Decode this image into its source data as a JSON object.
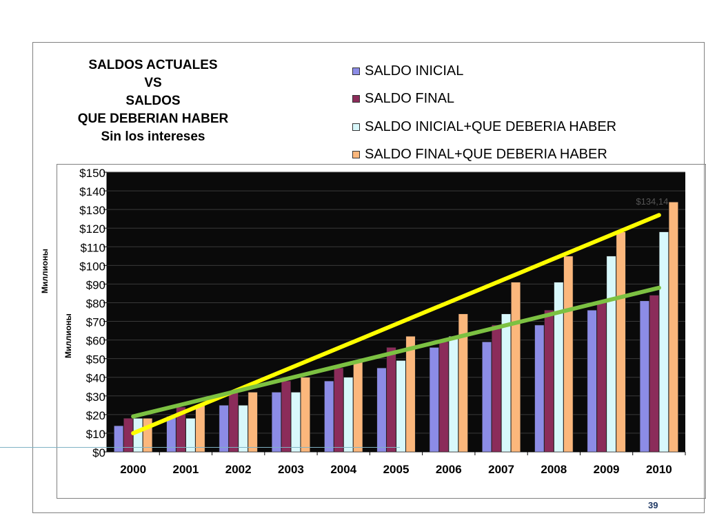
{
  "slide": {
    "page_number": "39"
  },
  "chart_data": {
    "type": "bar",
    "title_lines": [
      "SALDOS ACTUALES",
      "VS",
      "SALDOS",
      "QUE DEBERIAN HABER",
      "Sin los intereses"
    ],
    "unit_label": "Миллионы",
    "categories": [
      "2000",
      "2001",
      "2002",
      "2003",
      "2004",
      "2005",
      "2006",
      "2007",
      "2008",
      "2009",
      "2010"
    ],
    "ylim": [
      0,
      150
    ],
    "y_ticks": [
      "$0",
      "$10",
      "$20",
      "$30",
      "$40",
      "$50",
      "$60",
      "$70",
      "$80",
      "$90",
      "$100",
      "$110",
      "$120",
      "$130",
      "$140",
      "$150"
    ],
    "grid": true,
    "legend_position": "top-right",
    "series": [
      {
        "name": "SALDO INICIAL",
        "color": "#8c8ce6",
        "values": [
          14,
          19,
          25,
          32,
          38,
          45,
          56,
          59,
          68,
          76,
          81
        ]
      },
      {
        "name": "SALDO FINAL",
        "color": "#8b2c5a",
        "values": [
          18,
          24,
          32,
          38,
          45,
          56,
          59,
          68,
          76,
          81,
          84
        ]
      },
      {
        "name": "SALDO INICIAL+QUE DEBERIA HABER",
        "color": "#d8f8fb",
        "values": [
          18,
          18,
          25,
          32,
          40,
          49,
          62,
          74,
          91,
          105,
          118
        ]
      },
      {
        "name": "SALDO FINAL+QUE DEBERIA HABER",
        "color": "#fbb77c",
        "values": [
          18,
          25,
          32,
          40,
          49,
          62,
          74,
          91,
          105,
          118,
          134
        ]
      }
    ],
    "annotations": [
      {
        "text": "$134,14",
        "x": "2010",
        "y": 134.14
      }
    ],
    "trendlines": [
      {
        "color": "#ffff00",
        "from": {
          "x": "2000",
          "y": 10
        },
        "to": {
          "x": "2010",
          "y": 127
        }
      },
      {
        "color": "#7cc142",
        "from": {
          "x": "2000",
          "y": 19
        },
        "to": {
          "x": "2010",
          "y": 88
        }
      }
    ],
    "plot_background": "#0a0a0a"
  }
}
